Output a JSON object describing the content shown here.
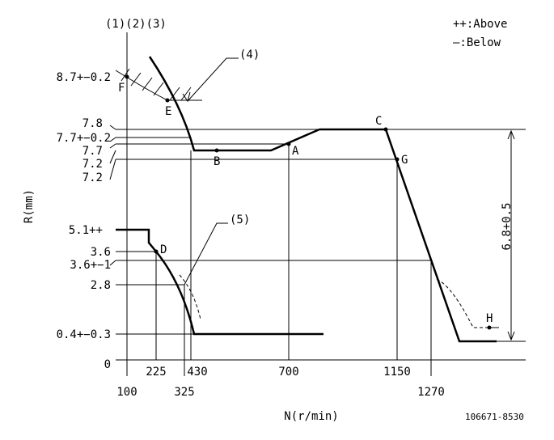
{
  "header": {
    "curves": "(1)(2)(3)",
    "legend_above": "++:Above",
    "legend_below": "—:Below"
  },
  "callouts": [
    "(4)",
    "(5)"
  ],
  "y_labels": [
    "8.7+−0.2",
    "7.8",
    "7.7+−0.2",
    "7.7",
    "7.2",
    "7.2",
    "5.1++",
    "3.6",
    "3.6+−1",
    "2.8",
    "0.4+−0.3",
    "0"
  ],
  "x_labels_upper": [
    "225",
    "430",
    "700",
    "1150"
  ],
  "x_labels_lower": [
    "100",
    "325",
    "1270"
  ],
  "points": [
    "F",
    "E",
    "B",
    "A",
    "C",
    "G",
    "D",
    "H"
  ],
  "axes": {
    "y": "R(mm)",
    "x": "N(r/min)"
  },
  "dimension": "6.8+0.5",
  "code": "106671-8530"
}
